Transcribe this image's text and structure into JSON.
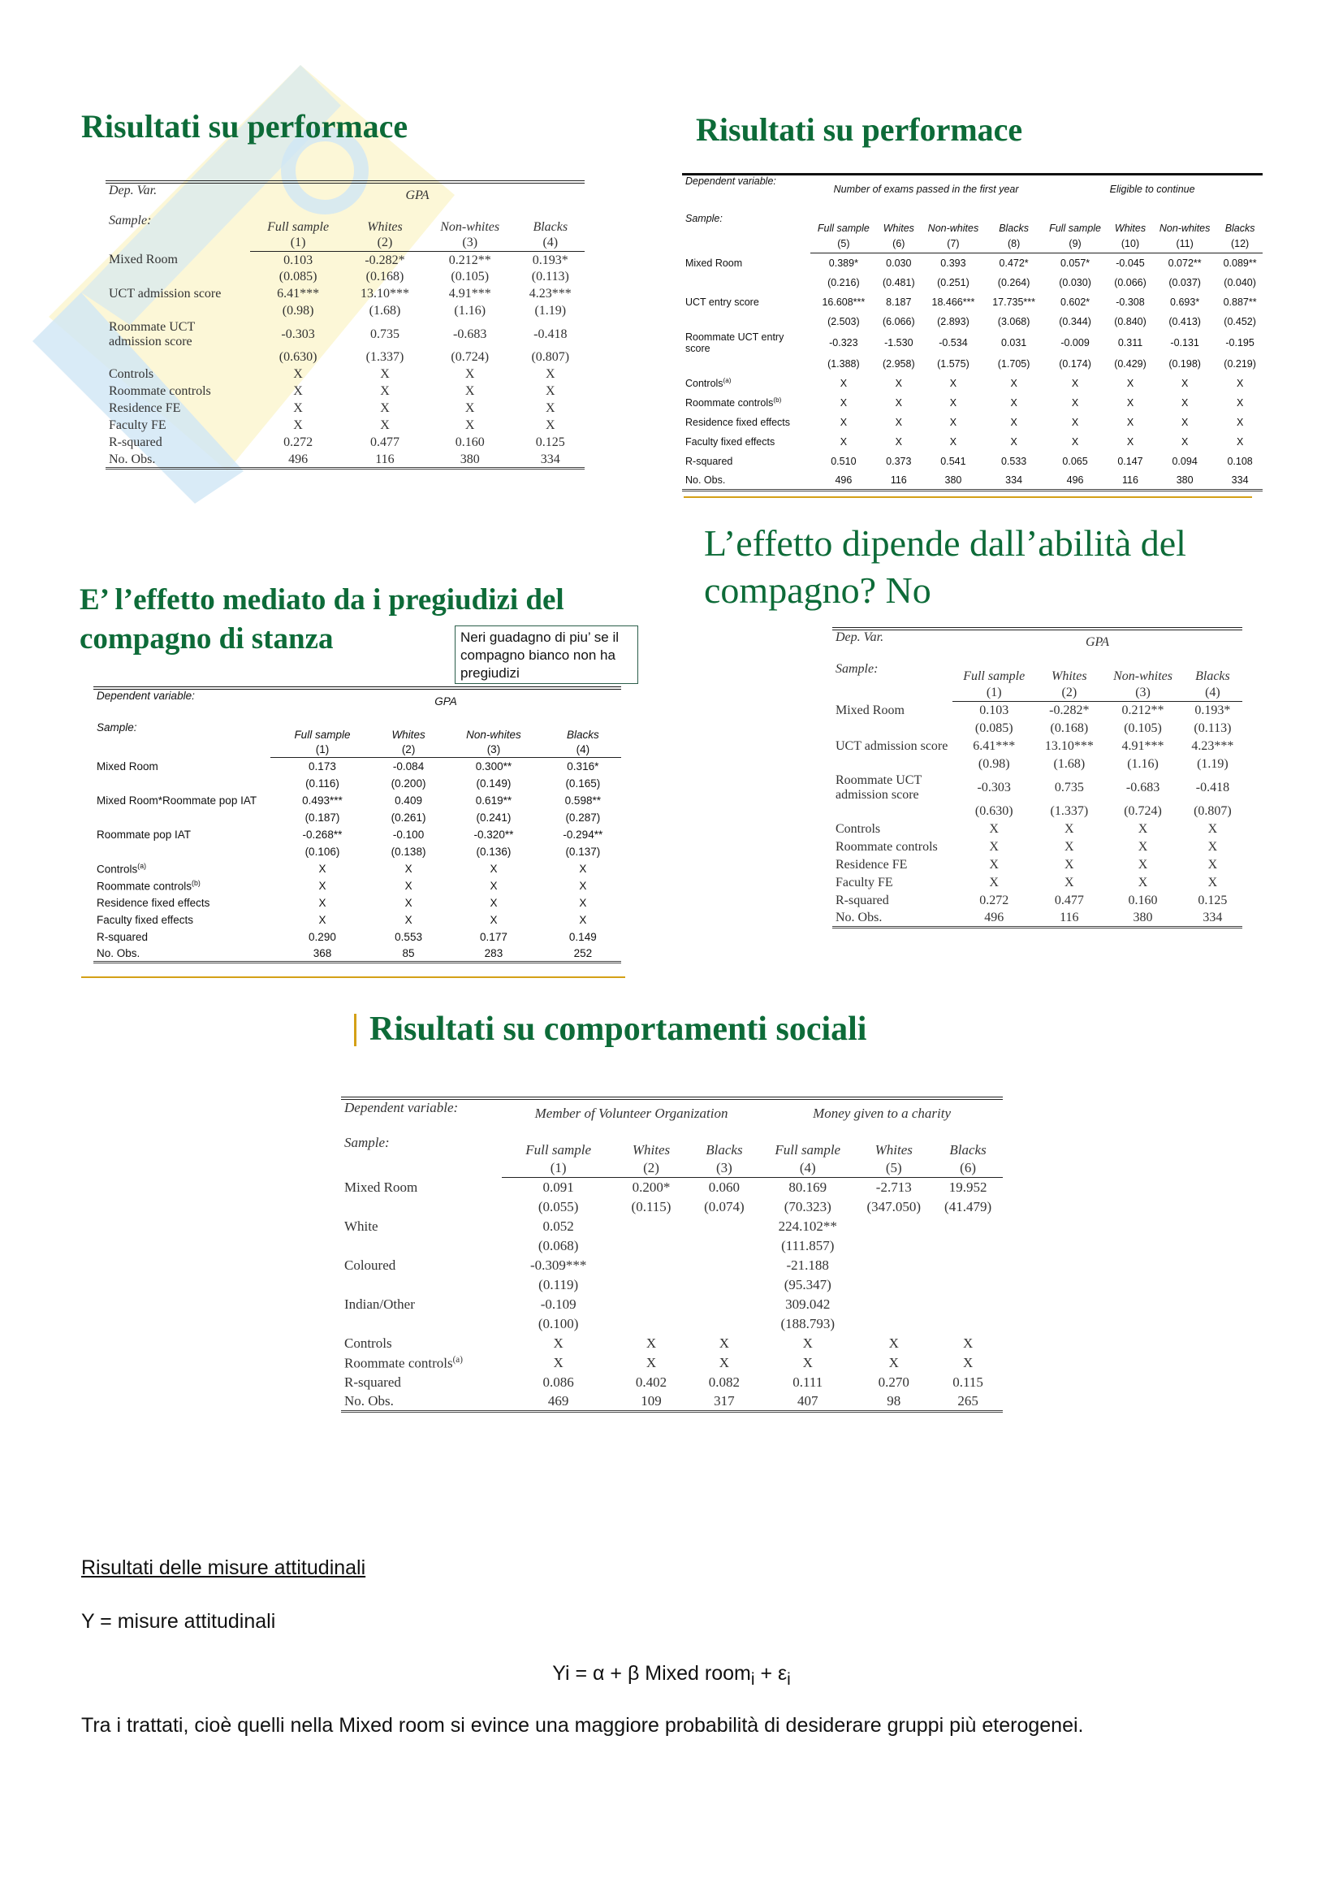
{
  "headings": {
    "perf_left": "Risultati su performace",
    "perf_right": "Risultati su performace",
    "ability": "L’effetto dipende dall’abilità del compagno? No",
    "prejudice": "E’ l’effetto mediato da i pregiudizi del compagno di stanza",
    "social": "Risultati su comportamenti sociali"
  },
  "note_box": "Neri guadagno di piu’ se il compagno bianco non ha pregiudizi",
  "gpa_table": {
    "dep_label": "Dep. Var.",
    "groups": [
      {
        "label": "GPA",
        "span": 4
      }
    ],
    "sample_label": "Sample:",
    "samples": [
      "Full sample",
      "Whites",
      "Non-whites",
      "Blacks"
    ],
    "col_numbers": [
      "(1)",
      "(2)",
      "(3)",
      "(4)"
    ],
    "rows": [
      {
        "label": "Mixed Room",
        "values": [
          "0.103",
          "-0.282*",
          "0.212**",
          "0.193*"
        ]
      },
      {
        "label": "",
        "values": [
          "(0.085)",
          "(0.168)",
          "(0.105)",
          "(0.113)"
        ]
      },
      {
        "label": "UCT admission score",
        "values": [
          "6.41***",
          "13.10***",
          "4.91***",
          "4.23***"
        ]
      },
      {
        "label": "",
        "values": [
          "(0.98)",
          "(1.68)",
          "(1.16)",
          "(1.19)"
        ]
      },
      {
        "label": "Roommate UCT admission score",
        "values": [
          "-0.303",
          "0.735",
          "-0.683",
          "-0.418"
        ]
      },
      {
        "label": "",
        "values": [
          "(0.630)",
          "(1.337)",
          "(0.724)",
          "(0.807)"
        ]
      },
      {
        "label": "Controls",
        "values": [
          "X",
          "X",
          "X",
          "X"
        ]
      },
      {
        "label": "Roommate controls",
        "values": [
          "X",
          "X",
          "X",
          "X"
        ]
      },
      {
        "label": "Residence FE",
        "values": [
          "X",
          "X",
          "X",
          "X"
        ]
      },
      {
        "label": "Faculty FE",
        "values": [
          "X",
          "X",
          "X",
          "X"
        ]
      },
      {
        "label": "R-squared",
        "values": [
          "0.272",
          "0.477",
          "0.160",
          "0.125"
        ]
      },
      {
        "label": "No. Obs.",
        "values": [
          "496",
          "116",
          "380",
          "334"
        ]
      }
    ]
  },
  "exams_table": {
    "dep_label": "Dependent variable:",
    "groups": [
      {
        "label": "Number of exams passed in the first year",
        "span": 4
      },
      {
        "label": "Eligible to continue",
        "span": 4
      }
    ],
    "sample_label": "Sample:",
    "samples": [
      "Full sample",
      "Whites",
      "Non-whites",
      "Blacks",
      "Full sample",
      "Whites",
      "Non-whites",
      "Blacks"
    ],
    "col_numbers": [
      "(5)",
      "(6)",
      "(7)",
      "(8)",
      "(9)",
      "(10)",
      "(11)",
      "(12)"
    ],
    "rows": [
      {
        "label": "Mixed Room",
        "values": [
          "0.389*",
          "0.030",
          "0.393",
          "0.472*",
          "0.057*",
          "-0.045",
          "0.072**",
          "0.089**"
        ]
      },
      {
        "label": "",
        "values": [
          "(0.216)",
          "(0.481)",
          "(0.251)",
          "(0.264)",
          "(0.030)",
          "(0.066)",
          "(0.037)",
          "(0.040)"
        ]
      },
      {
        "label": "UCT entry score",
        "values": [
          "16.608***",
          "8.187",
          "18.466***",
          "17.735***",
          "0.602*",
          "-0.308",
          "0.693*",
          "0.887**"
        ]
      },
      {
        "label": "",
        "values": [
          "(2.503)",
          "(6.066)",
          "(2.893)",
          "(3.068)",
          "(0.344)",
          "(0.840)",
          "(0.413)",
          "(0.452)"
        ]
      },
      {
        "label": "Roommate UCT entry score",
        "values": [
          "-0.323",
          "-1.530",
          "-0.534",
          "0.031",
          "-0.009",
          "0.311",
          "-0.131",
          "-0.195"
        ]
      },
      {
        "label": "",
        "values": [
          "(1.388)",
          "(2.958)",
          "(1.575)",
          "(1.705)",
          "(0.174)",
          "(0.429)",
          "(0.198)",
          "(0.219)"
        ]
      },
      {
        "label": "Controls",
        "note": "(a)",
        "values": [
          "X",
          "X",
          "X",
          "X",
          "X",
          "X",
          "X",
          "X"
        ]
      },
      {
        "label": "Roommate controls",
        "note": "(b)",
        "values": [
          "X",
          "X",
          "X",
          "X",
          "X",
          "X",
          "X",
          "X"
        ]
      },
      {
        "label": "Residence fixed effects",
        "values": [
          "X",
          "X",
          "X",
          "X",
          "X",
          "X",
          "X",
          "X"
        ]
      },
      {
        "label": "Faculty fixed effects",
        "values": [
          "X",
          "X",
          "X",
          "X",
          "X",
          "X",
          "X",
          "X"
        ]
      },
      {
        "label": "R-squared",
        "values": [
          "0.510",
          "0.373",
          "0.541",
          "0.533",
          "0.065",
          "0.147",
          "0.094",
          "0.108"
        ]
      },
      {
        "label": "No. Obs.",
        "values": [
          "496",
          "116",
          "380",
          "334",
          "496",
          "116",
          "380",
          "334"
        ]
      }
    ]
  },
  "iat_table": {
    "dep_label": "Dependent variable:",
    "groups": [
      {
        "label": "GPA",
        "span": 4
      }
    ],
    "sample_label": "Sample:",
    "samples": [
      "Full sample",
      "Whites",
      "Non-whites",
      "Blacks"
    ],
    "col_numbers": [
      "(1)",
      "(2)",
      "(3)",
      "(4)"
    ],
    "rows": [
      {
        "label": "Mixed Room",
        "values": [
          "0.173",
          "-0.084",
          "0.300**",
          "0.316*"
        ]
      },
      {
        "label": "",
        "values": [
          "(0.116)",
          "(0.200)",
          "(0.149)",
          "(0.165)"
        ]
      },
      {
        "label": "Mixed Room*Roommate pop IAT",
        "values": [
          "0.493***",
          "0.409",
          "0.619**",
          "0.598**"
        ]
      },
      {
        "label": "",
        "values": [
          "(0.187)",
          "(0.261)",
          "(0.241)",
          "(0.287)"
        ]
      },
      {
        "label": "Roommate pop IAT",
        "values": [
          "-0.268**",
          "-0.100",
          "-0.320**",
          "-0.294**"
        ]
      },
      {
        "label": "",
        "values": [
          "(0.106)",
          "(0.138)",
          "(0.136)",
          "(0.137)"
        ]
      },
      {
        "label": "Controls",
        "note": "(a)",
        "values": [
          "X",
          "X",
          "X",
          "X"
        ]
      },
      {
        "label": "Roommate controls",
        "note": "(b)",
        "values": [
          "X",
          "X",
          "X",
          "X"
        ]
      },
      {
        "label": "Residence fixed effects",
        "values": [
          "X",
          "X",
          "X",
          "X"
        ]
      },
      {
        "label": "Faculty fixed effects",
        "values": [
          "X",
          "X",
          "X",
          "X"
        ]
      },
      {
        "label": "R-squared",
        "values": [
          "0.290",
          "0.553",
          "0.177",
          "0.149"
        ]
      },
      {
        "label": "No. Obs.",
        "values": [
          "368",
          "85",
          "283",
          "252"
        ]
      }
    ]
  },
  "social_table": {
    "dep_label": "Dependent variable:",
    "groups": [
      {
        "label": "Member of Volunteer Organization",
        "span": 3
      },
      {
        "label": "Money given to a charity",
        "span": 3
      }
    ],
    "sample_label": "Sample:",
    "samples": [
      "Full sample",
      "Whites",
      "Blacks",
      "Full sample",
      "Whites",
      "Blacks"
    ],
    "col_numbers": [
      "(1)",
      "(2)",
      "(3)",
      "(4)",
      "(5)",
      "(6)"
    ],
    "rows": [
      {
        "label": "Mixed Room",
        "values": [
          "0.091",
          "0.200*",
          "0.060",
          "80.169",
          "-2.713",
          "19.952"
        ]
      },
      {
        "label": "",
        "values": [
          "(0.055)",
          "(0.115)",
          "(0.074)",
          "(70.323)",
          "(347.050)",
          "(41.479)"
        ]
      },
      {
        "label": "White",
        "values": [
          "0.052",
          "",
          "",
          "224.102**",
          "",
          ""
        ]
      },
      {
        "label": "",
        "values": [
          "(0.068)",
          "",
          "",
          "(111.857)",
          "",
          ""
        ]
      },
      {
        "label": "Coloured",
        "values": [
          "-0.309***",
          "",
          "",
          "-21.188",
          "",
          ""
        ]
      },
      {
        "label": "",
        "values": [
          "(0.119)",
          "",
          "",
          "(95.347)",
          "",
          ""
        ]
      },
      {
        "label": "Indian/Other",
        "values": [
          "-0.109",
          "",
          "",
          "309.042",
          "",
          ""
        ]
      },
      {
        "label": "",
        "values": [
          "(0.100)",
          "",
          "",
          "(188.793)",
          "",
          ""
        ]
      },
      {
        "label": "Controls",
        "values": [
          "X",
          "X",
          "X",
          "X",
          "X",
          "X"
        ]
      },
      {
        "label": "Roommate controls",
        "note": "(a)",
        "values": [
          "X",
          "X",
          "X",
          "X",
          "X",
          "X"
        ]
      },
      {
        "label": "R-squared",
        "values": [
          "0.086",
          "0.402",
          "0.082",
          "0.111",
          "0.270",
          "0.115"
        ]
      },
      {
        "label": "No. Obs.",
        "values": [
          "469",
          "109",
          "317",
          "407",
          "98",
          "265"
        ]
      }
    ]
  },
  "text": {
    "section_title": "Risultati delle misure attitudinali",
    "y_def": "Y = misure attitudinali",
    "equation": {
      "lhs": "Yi = α + β Mixed room",
      "sub1": "i",
      "plus": " + ε",
      "sub2": "i"
    },
    "conclusion": "Tra i trattati, cioè quelli nella Mixed room si evince una maggiore probabilità di desiderare gruppi più eterogenei."
  },
  "colors": {
    "heading_green": "#0d6b38",
    "accent_gold": "#d4a017",
    "watermark_blue": "#cfe6f5",
    "watermark_yellow": "#fbf4c6"
  }
}
